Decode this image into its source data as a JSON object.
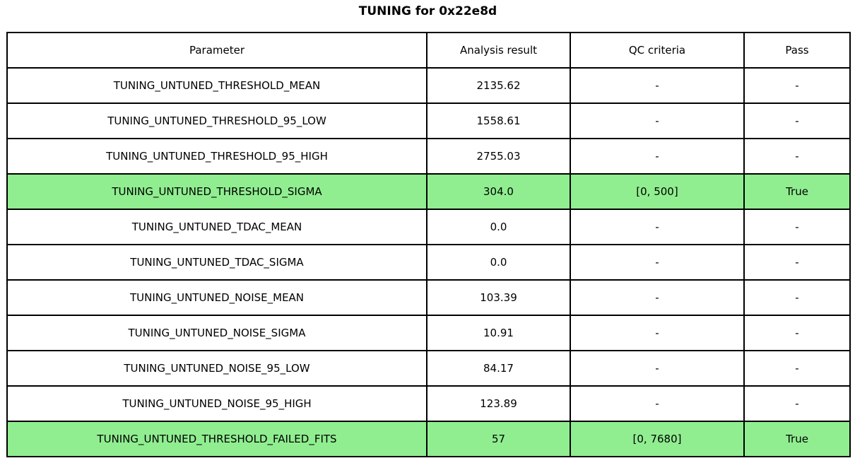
{
  "title": "TUNING for 0x22e8d",
  "colors": {
    "highlight_green": "#90ee90",
    "border": "#000000",
    "background": "#ffffff",
    "text": "#000000"
  },
  "table": {
    "headers": [
      "Parameter",
      "Analysis result",
      "QC criteria",
      "Pass"
    ],
    "rows": [
      {
        "parameter": "TUNING_UNTUNED_THRESHOLD_MEAN",
        "result": "2135.62",
        "qc": "-",
        "pass": "-",
        "highlight": false
      },
      {
        "parameter": "TUNING_UNTUNED_THRESHOLD_95_LOW",
        "result": "1558.61",
        "qc": "-",
        "pass": "-",
        "highlight": false
      },
      {
        "parameter": "TUNING_UNTUNED_THRESHOLD_95_HIGH",
        "result": "2755.03",
        "qc": "-",
        "pass": "-",
        "highlight": false
      },
      {
        "parameter": "TUNING_UNTUNED_THRESHOLD_SIGMA",
        "result": "304.0",
        "qc": "[0, 500]",
        "pass": "True",
        "highlight": true
      },
      {
        "parameter": "TUNING_UNTUNED_TDAC_MEAN",
        "result": "0.0",
        "qc": "-",
        "pass": "-",
        "highlight": false
      },
      {
        "parameter": "TUNING_UNTUNED_TDAC_SIGMA",
        "result": "0.0",
        "qc": "-",
        "pass": "-",
        "highlight": false
      },
      {
        "parameter": "TUNING_UNTUNED_NOISE_MEAN",
        "result": "103.39",
        "qc": "-",
        "pass": "-",
        "highlight": false
      },
      {
        "parameter": "TUNING_UNTUNED_NOISE_SIGMA",
        "result": "10.91",
        "qc": "-",
        "pass": "-",
        "highlight": false
      },
      {
        "parameter": "TUNING_UNTUNED_NOISE_95_LOW",
        "result": "84.17",
        "qc": "-",
        "pass": "-",
        "highlight": false
      },
      {
        "parameter": "TUNING_UNTUNED_NOISE_95_HIGH",
        "result": "123.89",
        "qc": "-",
        "pass": "-",
        "highlight": false
      },
      {
        "parameter": "TUNING_UNTUNED_THRESHOLD_FAILED_FITS",
        "result": "57",
        "qc": "[0, 7680]",
        "pass": "True",
        "highlight": true
      }
    ]
  },
  "chart_data": {
    "type": "table",
    "title": "TUNING for 0x22e8d",
    "columns": [
      "Parameter",
      "Analysis result",
      "QC criteria",
      "Pass"
    ],
    "rows": [
      [
        "TUNING_UNTUNED_THRESHOLD_MEAN",
        "2135.62",
        "-",
        "-"
      ],
      [
        "TUNING_UNTUNED_THRESHOLD_95_LOW",
        "1558.61",
        "-",
        "-"
      ],
      [
        "TUNING_UNTUNED_THRESHOLD_95_HIGH",
        "2755.03",
        "-",
        "-"
      ],
      [
        "TUNING_UNTUNED_THRESHOLD_SIGMA",
        "304.0",
        "[0, 500]",
        "True"
      ],
      [
        "TUNING_UNTUNED_TDAC_MEAN",
        "0.0",
        "-",
        "-"
      ],
      [
        "TUNING_UNTUNED_TDAC_SIGMA",
        "0.0",
        "-",
        "-"
      ],
      [
        "TUNING_UNTUNED_NOISE_MEAN",
        "103.39",
        "-",
        "-"
      ],
      [
        "TUNING_UNTUNED_NOISE_SIGMA",
        "10.91",
        "-",
        "-"
      ],
      [
        "TUNING_UNTUNED_NOISE_95_LOW",
        "84.17",
        "-",
        "-"
      ],
      [
        "TUNING_UNTUNED_NOISE_95_HIGH",
        "123.89",
        "-",
        "-"
      ],
      [
        "TUNING_UNTUNED_THRESHOLD_FAILED_FITS",
        "57",
        "[0, 7680]",
        "True"
      ]
    ],
    "highlighted_row_indices": [
      3,
      10
    ],
    "layout_hints": {
      "highlighted_rows_color": "#90ee90",
      "all_cells_centered": true,
      "grid": "full black borders"
    }
  }
}
